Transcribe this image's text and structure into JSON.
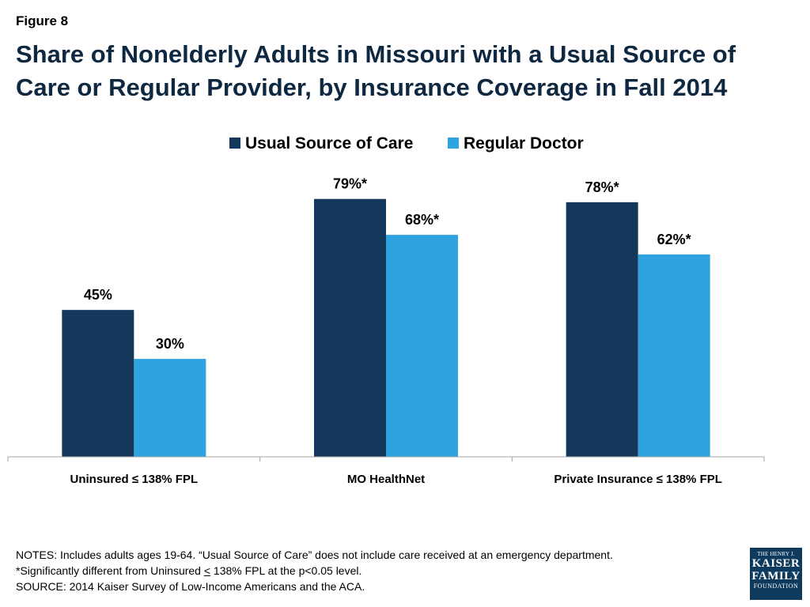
{
  "figure_label": "Figure 8",
  "title": "Share of Nonelderly Adults in Missouri with a Usual Source of Care or Regular Provider, by Insurance Coverage in Fall 2014",
  "colors": {
    "usual_source": "#14375c",
    "regular_doctor": "#2fa2e0"
  },
  "chart_data": {
    "type": "bar",
    "title": "Share of Nonelderly Adults in Missouri with a Usual Source of Care or Regular Provider, by Insurance Coverage in Fall 2014",
    "categories": [
      "Uninsured ≤ 138% FPL",
      "MO HealthNet",
      "Private Insurance ≤ 138% FPL"
    ],
    "series": [
      {
        "name": "Usual Source of Care",
        "values": [
          45,
          79,
          78
        ],
        "labels": [
          "45%",
          "79%*",
          "78%*"
        ]
      },
      {
        "name": "Regular Doctor",
        "values": [
          30,
          68,
          62
        ],
        "labels": [
          "30%",
          "68%*",
          "62%*"
        ]
      }
    ],
    "ylim": [
      0,
      100
    ],
    "grid": false,
    "legend": "top-center"
  },
  "notes": {
    "line1": "NOTES: Includes adults ages 19-64. “Usual Source of Care” does not include care received at an emergency department.",
    "line2_pre": "*Significantly different from Uninsured ",
    "line2_le": "<",
    "line2_post": " 138% FPL at the p<0.05 level.",
    "line3": "SOURCE: 2014 Kaiser Survey of Low-Income Americans and the ACA."
  },
  "logo": {
    "line1": "THE HENRY J.",
    "line2": "KAISER",
    "line3": "FAMILY",
    "line4": "FOUNDATION"
  }
}
